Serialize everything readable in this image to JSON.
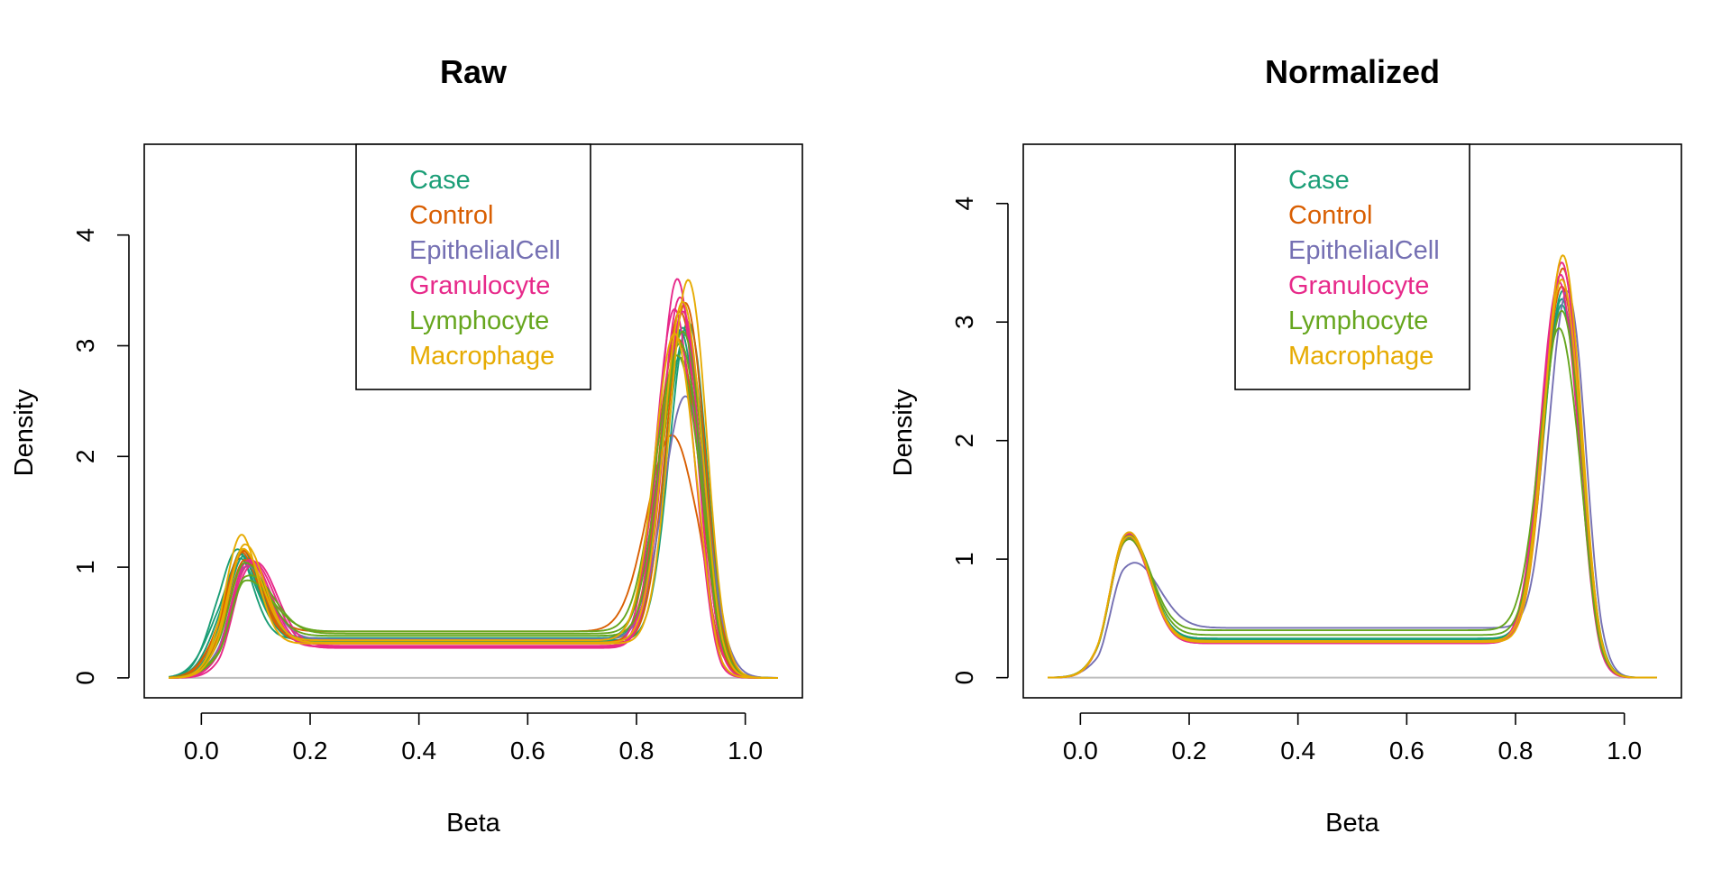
{
  "chart_data": [
    {
      "type": "line",
      "title": "Raw",
      "xlabel": "Beta",
      "ylabel": "Density",
      "xlim": [
        -0.105,
        1.105
      ],
      "ylim": [
        -0.18,
        4.82
      ],
      "x_ticks": [
        "0.0",
        "0.2",
        "0.4",
        "0.6",
        "0.8",
        "1.0"
      ],
      "y_ticks": [
        "0",
        "1",
        "2",
        "3",
        "4"
      ],
      "legend": {
        "position": "top-center",
        "entries": [
          "Case",
          "Control",
          "EpithelialCell",
          "Granulocyte",
          "Lymphocyte",
          "Macrophage"
        ]
      },
      "baseline": 0,
      "series": [
        {
          "group": "Case",
          "m1": 0.055,
          "s1": 0.035,
          "a1": 0.081,
          "m2": 0.88,
          "s2": 0.035,
          "a2": 0.245,
          "flat": 0.35
        },
        {
          "group": "Case",
          "m1": 0.065,
          "s1": 0.038,
          "a1": 0.078,
          "m2": 0.89,
          "s2": 0.036,
          "a2": 0.25,
          "flat": 0.33
        },
        {
          "group": "Case",
          "m1": 0.07,
          "s1": 0.036,
          "a1": 0.074,
          "m2": 0.885,
          "s2": 0.037,
          "a2": 0.26,
          "flat": 0.36
        },
        {
          "group": "Case",
          "m1": 0.06,
          "s1": 0.04,
          "a1": 0.08,
          "m2": 0.895,
          "s2": 0.034,
          "a2": 0.245,
          "flat": 0.34
        },
        {
          "group": "Case",
          "m1": 0.075,
          "s1": 0.037,
          "a1": 0.07,
          "m2": 0.88,
          "s2": 0.04,
          "a2": 0.255,
          "flat": 0.35
        },
        {
          "group": "Control",
          "m1": 0.07,
          "s1": 0.04,
          "a1": 0.076,
          "m2": 0.865,
          "s2": 0.045,
          "a2": 0.2,
          "flat": 0.42
        },
        {
          "group": "Control",
          "m1": 0.075,
          "s1": 0.036,
          "a1": 0.075,
          "m2": 0.88,
          "s2": 0.036,
          "a2": 0.27,
          "flat": 0.32
        },
        {
          "group": "Control",
          "m1": 0.08,
          "s1": 0.038,
          "a1": 0.072,
          "m2": 0.89,
          "s2": 0.035,
          "a2": 0.27,
          "flat": 0.31
        },
        {
          "group": "Control",
          "m1": 0.068,
          "s1": 0.037,
          "a1": 0.076,
          "m2": 0.875,
          "s2": 0.038,
          "a2": 0.26,
          "flat": 0.34
        },
        {
          "group": "EpithelialCell",
          "m1": 0.085,
          "s1": 0.04,
          "a1": 0.066,
          "m2": 0.89,
          "s2": 0.04,
          "a2": 0.22,
          "flat": 0.35
        },
        {
          "group": "Granulocyte",
          "m1": 0.09,
          "s1": 0.038,
          "a1": 0.075,
          "m2": 0.875,
          "s2": 0.033,
          "a2": 0.275,
          "flat": 0.28
        },
        {
          "group": "Granulocyte",
          "m1": 0.095,
          "s1": 0.04,
          "a1": 0.078,
          "m2": 0.88,
          "s2": 0.034,
          "a2": 0.27,
          "flat": 0.27
        },
        {
          "group": "Granulocyte",
          "m1": 0.1,
          "s1": 0.039,
          "a1": 0.074,
          "m2": 0.885,
          "s2": 0.035,
          "a2": 0.265,
          "flat": 0.29
        },
        {
          "group": "Granulocyte",
          "m1": 0.088,
          "s1": 0.037,
          "a1": 0.072,
          "m2": 0.87,
          "s2": 0.034,
          "a2": 0.26,
          "flat": 0.28
        },
        {
          "group": "Lymphocyte",
          "m1": 0.085,
          "s1": 0.045,
          "a1": 0.052,
          "m2": 0.875,
          "s2": 0.04,
          "a2": 0.25,
          "flat": 0.42
        },
        {
          "group": "Lymphocyte",
          "m1": 0.09,
          "s1": 0.044,
          "a1": 0.058,
          "m2": 0.88,
          "s2": 0.038,
          "a2": 0.25,
          "flat": 0.4
        },
        {
          "group": "Lymphocyte",
          "m1": 0.08,
          "s1": 0.041,
          "a1": 0.068,
          "m2": 0.885,
          "s2": 0.037,
          "a2": 0.255,
          "flat": 0.38
        },
        {
          "group": "Macrophage",
          "m1": 0.07,
          "s1": 0.033,
          "a1": 0.083,
          "m2": 0.895,
          "s2": 0.034,
          "a2": 0.28,
          "flat": 0.31
        },
        {
          "group": "Macrophage",
          "m1": 0.08,
          "s1": 0.036,
          "a1": 0.08,
          "m2": 0.885,
          "s2": 0.035,
          "a2": 0.27,
          "flat": 0.32
        },
        {
          "group": "Macrophage",
          "m1": 0.075,
          "s1": 0.037,
          "a1": 0.077,
          "m2": 0.87,
          "s2": 0.036,
          "a2": 0.25,
          "flat": 0.34
        }
      ]
    },
    {
      "type": "line",
      "title": "Normalized",
      "xlabel": "Beta",
      "ylabel": "Density",
      "xlim": [
        -0.105,
        1.105
      ],
      "ylim": [
        -0.17,
        4.5
      ],
      "x_ticks": [
        "0.0",
        "0.2",
        "0.4",
        "0.6",
        "0.8",
        "1.0"
      ],
      "y_ticks": [
        "0",
        "1",
        "2",
        "3",
        "4"
      ],
      "legend": {
        "position": "top-center",
        "entries": [
          "Case",
          "Control",
          "EpithelialCell",
          "Granulocyte",
          "Lymphocyte",
          "Macrophage"
        ]
      },
      "baseline": 0,
      "series": [
        {
          "group": "Case",
          "m1": 0.09,
          "s1": 0.038,
          "a1": 0.08,
          "m2": 0.885,
          "s2": 0.034,
          "a2": 0.24,
          "flat": 0.33
        },
        {
          "group": "Case",
          "m1": 0.09,
          "s1": 0.038,
          "a1": 0.083,
          "m2": 0.885,
          "s2": 0.034,
          "a2": 0.245,
          "flat": 0.32
        },
        {
          "group": "Case",
          "m1": 0.09,
          "s1": 0.038,
          "a1": 0.081,
          "m2": 0.887,
          "s2": 0.034,
          "a2": 0.25,
          "flat": 0.33
        },
        {
          "group": "Control",
          "m1": 0.09,
          "s1": 0.037,
          "a1": 0.085,
          "m2": 0.885,
          "s2": 0.034,
          "a2": 0.255,
          "flat": 0.31
        },
        {
          "group": "Control",
          "m1": 0.09,
          "s1": 0.038,
          "a1": 0.082,
          "m2": 0.887,
          "s2": 0.033,
          "a2": 0.26,
          "flat": 0.31
        },
        {
          "group": "EpithelialCell",
          "m1": 0.1,
          "s1": 0.045,
          "a1": 0.062,
          "m2": 0.895,
          "s2": 0.033,
          "a2": 0.235,
          "flat": 0.42
        },
        {
          "group": "Granulocyte",
          "m1": 0.09,
          "s1": 0.037,
          "a1": 0.086,
          "m2": 0.88,
          "s2": 0.034,
          "a2": 0.26,
          "flat": 0.29
        },
        {
          "group": "Granulocyte",
          "m1": 0.09,
          "s1": 0.037,
          "a1": 0.085,
          "m2": 0.883,
          "s2": 0.034,
          "a2": 0.265,
          "flat": 0.29
        },
        {
          "group": "Granulocyte",
          "m1": 0.09,
          "s1": 0.038,
          "a1": 0.083,
          "m2": 0.885,
          "s2": 0.033,
          "a2": 0.265,
          "flat": 0.3
        },
        {
          "group": "Lymphocyte",
          "m1": 0.09,
          "s1": 0.039,
          "a1": 0.078,
          "m2": 0.88,
          "s2": 0.036,
          "a2": 0.23,
          "flat": 0.4
        },
        {
          "group": "Lymphocyte",
          "m1": 0.09,
          "s1": 0.039,
          "a1": 0.079,
          "m2": 0.885,
          "s2": 0.035,
          "a2": 0.24,
          "flat": 0.36
        },
        {
          "group": "Macrophage",
          "m1": 0.09,
          "s1": 0.037,
          "a1": 0.086,
          "m2": 0.887,
          "s2": 0.033,
          "a2": 0.27,
          "flat": 0.3
        },
        {
          "group": "Macrophage",
          "m1": 0.09,
          "s1": 0.038,
          "a1": 0.084,
          "m2": 0.885,
          "s2": 0.034,
          "a2": 0.26,
          "flat": 0.31
        }
      ]
    }
  ],
  "colors": {
    "Case": "#1b9e77",
    "Control": "#d95f02",
    "EpithelialCell": "#7570b3",
    "Granulocyte": "#e7298a",
    "Lymphocyte": "#66a61e",
    "Macrophage": "#e6ab02",
    "baseline": "#bebebe",
    "axis": "#000000"
  }
}
